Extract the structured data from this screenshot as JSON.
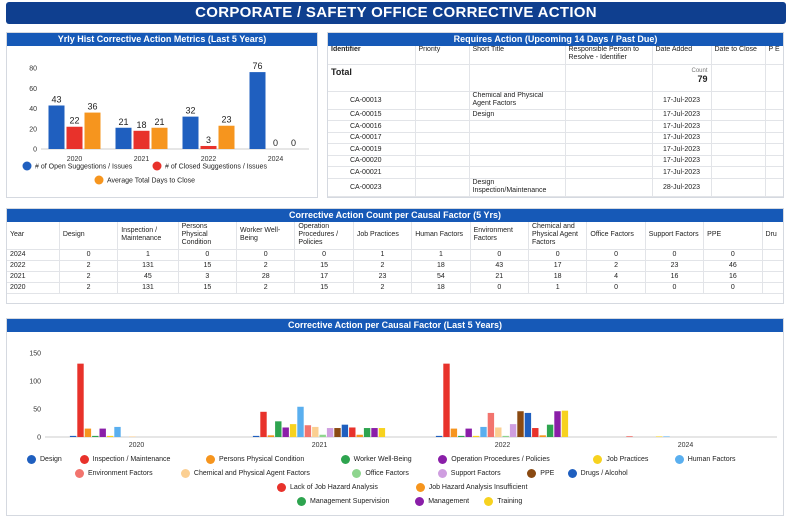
{
  "page_title": "CORPORATE / SAFETY OFFICE CORRECTIVE ACTION",
  "metrics_chart": {
    "title": "Yrly Hist Corrective Action Metrics (Last 5 Years)",
    "legend": [
      "# of Open Suggestions / Issues",
      "# of Closed Suggestions / Issues",
      "Average Total Days to Close"
    ],
    "colors": [
      "#1f5fbf",
      "#e8322b",
      "#f6951e"
    ]
  },
  "requires_action": {
    "title": "Requires Action (Upcoming 14 Days / Past Due)",
    "headers": [
      "Identifier",
      "Priority",
      "Short Title",
      "Responsible Person to Resolve - Identifier",
      "Date Added",
      "Date to Close",
      "P E"
    ],
    "total_label": "Total",
    "count_label": "Count",
    "count_value": "79",
    "rows": [
      {
        "id": "CA-00013",
        "title": "Chemical and Physical Agent Factors",
        "date": "17-Jul-2023"
      },
      {
        "id": "CA-00015",
        "title": "Design",
        "date": "17-Jul-2023"
      },
      {
        "id": "CA-00016",
        "title": "",
        "date": "17-Jul-2023"
      },
      {
        "id": "CA-00017",
        "title": "",
        "date": "17-Jul-2023"
      },
      {
        "id": "CA-00019",
        "title": "",
        "date": "17-Jul-2023"
      },
      {
        "id": "CA-00020",
        "title": "",
        "date": "17-Jul-2023"
      },
      {
        "id": "CA-00021",
        "title": "",
        "date": "17-Jul-2023"
      },
      {
        "id": "CA-00023",
        "title": "Design Inspection/Maintenance",
        "date": "28-Jul-2023"
      }
    ]
  },
  "count_table": {
    "title": "Corrective Action Count per Causal Factor (5 Yrs)",
    "headers": [
      "Year",
      "Design",
      "Inspection / Maintenance",
      "Persons Physical Condition",
      "Worker Well-Being",
      "Operation Procedures / Policies",
      "Job Practices",
      "Human Factors",
      "Environment Factors",
      "Chemical and Physical Agent Factors",
      "Office Factors",
      "Support Factors",
      "PPE",
      "Dru"
    ],
    "rows": [
      [
        "2024",
        "0",
        "1",
        "0",
        "0",
        "0",
        "1",
        "1",
        "0",
        "0",
        "0",
        "0",
        "0",
        ""
      ],
      [
        "2022",
        "2",
        "131",
        "15",
        "2",
        "15",
        "2",
        "18",
        "43",
        "17",
        "2",
        "23",
        "46",
        ""
      ],
      [
        "2021",
        "2",
        "45",
        "3",
        "28",
        "17",
        "23",
        "54",
        "21",
        "18",
        "4",
        "16",
        "16",
        ""
      ],
      [
        "2020",
        "2",
        "131",
        "15",
        "2",
        "15",
        "2",
        "18",
        "0",
        "1",
        "0",
        "0",
        "0",
        ""
      ]
    ]
  },
  "causal_chart": {
    "title": "Corrective Action per Causal Factor (Last 5 Years)",
    "legend": [
      "Design",
      "Inspection / Maintenance",
      "Persons Physical Condition",
      "Worker Well-Being",
      "Operation Procedures / Policies",
      "Job Practices",
      "Human Factors",
      "Environment Factors",
      "Chemical and Physical Agent Factors",
      "Office Factors",
      "Support Factors",
      "PPE",
      "Drugs / Alcohol",
      "Lack of Job Hazard Analysis",
      "Job Hazard Analysis Insufficient",
      "Management Supervision",
      "Management",
      "Training"
    ],
    "colors": [
      "#1f5fbf",
      "#e8322b",
      "#f6951e",
      "#2ea44f",
      "#8a1ea8",
      "#f7d21f",
      "#5aafef",
      "#f2746e",
      "#fbcf92",
      "#8ed58e",
      "#cf9ee0",
      "#8a4a12",
      "#1f5fbf",
      "#e8322b",
      "#f6951e",
      "#2ea44f",
      "#8a1ea8",
      "#f7d21f"
    ]
  },
  "chart_data": [
    {
      "type": "bar",
      "title": "Yrly Hist Corrective Action Metrics (Last 5 Years)",
      "categories": [
        "2020",
        "2021",
        "2022",
        "2024"
      ],
      "series": [
        {
          "name": "# of Open Suggestions / Issues",
          "values": [
            43,
            21,
            32,
            76
          ]
        },
        {
          "name": "# of Closed Suggestions / Issues",
          "values": [
            22,
            18,
            3,
            0
          ]
        },
        {
          "name": "Average Total Days to Close",
          "values": [
            36,
            21,
            23,
            0
          ]
        }
      ],
      "yticks": [
        0,
        20,
        40,
        60,
        80
      ],
      "ylim": [
        0,
        85
      ]
    },
    {
      "type": "bar",
      "title": "Corrective Action per Causal Factor (Last 5 Years)",
      "categories": [
        "2020",
        "2021",
        "2022",
        "2024"
      ],
      "ylim": [
        0,
        150
      ],
      "yticks": [
        0,
        50,
        100,
        150
      ],
      "series": [
        {
          "name": "Design",
          "values": [
            2,
            2,
            2,
            0
          ]
        },
        {
          "name": "Inspection / Maintenance",
          "values": [
            131,
            45,
            131,
            1
          ]
        },
        {
          "name": "Persons Physical Condition",
          "values": [
            15,
            3,
            15,
            0
          ]
        },
        {
          "name": "Worker Well-Being",
          "values": [
            2,
            28,
            2,
            0
          ]
        },
        {
          "name": "Operation Procedures / Policies",
          "values": [
            15,
            17,
            15,
            0
          ]
        },
        {
          "name": "Job Practices",
          "values": [
            2,
            23,
            2,
            1
          ]
        },
        {
          "name": "Human Factors",
          "values": [
            18,
            54,
            18,
            1
          ]
        },
        {
          "name": "Environment Factors",
          "values": [
            0,
            21,
            43,
            0
          ]
        },
        {
          "name": "Chemical and Physical Agent Factors",
          "values": [
            1,
            18,
            17,
            0
          ]
        },
        {
          "name": "Office Factors",
          "values": [
            0,
            4,
            2,
            0
          ]
        },
        {
          "name": "Support Factors",
          "values": [
            0,
            16,
            23,
            0
          ]
        },
        {
          "name": "PPE",
          "values": [
            0,
            16,
            46,
            0
          ]
        },
        {
          "name": "Drugs / Alcohol",
          "values": [
            0,
            22,
            43,
            0
          ]
        },
        {
          "name": "Lack of Job Hazard Analysis",
          "values": [
            0,
            17,
            16,
            0
          ]
        },
        {
          "name": "Job Hazard Analysis Insufficient",
          "values": [
            0,
            4,
            3,
            0
          ]
        },
        {
          "name": "Management Supervision",
          "values": [
            0,
            16,
            22,
            0
          ]
        },
        {
          "name": "Management",
          "values": [
            0,
            16,
            46,
            0
          ]
        },
        {
          "name": "Training",
          "values": [
            0,
            16,
            47,
            0
          ]
        }
      ]
    }
  ]
}
